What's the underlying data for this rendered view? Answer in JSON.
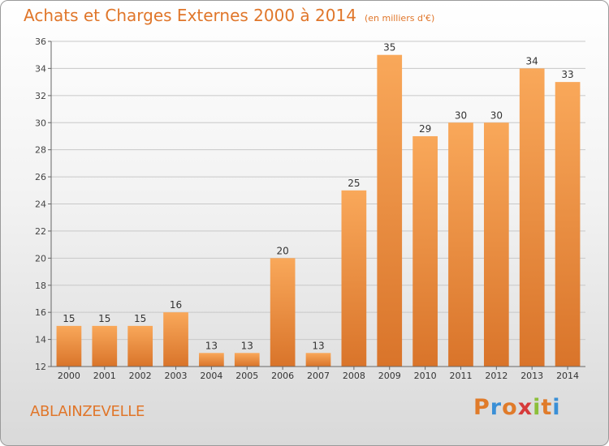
{
  "header": {
    "title": "Achats et Charges Externes 2000 à 2014",
    "unit": "(en milliers d'€)"
  },
  "footer": {
    "commune": "ABLAINZEVELLE",
    "logo": "Proxiti",
    "logo_colors": [
      "#e07b2a",
      "#3a8fd6",
      "#e07b2a",
      "#d63a3a",
      "#8cbf3a",
      "#e07b2a",
      "#3a8fd6"
    ]
  },
  "chart_data": {
    "type": "bar",
    "title": "Achats et Charges Externes 2000 à 2014",
    "subtitle": "(en milliers d'€)",
    "xlabel": "",
    "ylabel": "",
    "categories": [
      "2000",
      "2001",
      "2002",
      "2003",
      "2004",
      "2005",
      "2006",
      "2007",
      "2008",
      "2009",
      "2010",
      "2011",
      "2012",
      "2013",
      "2014"
    ],
    "values": [
      15,
      15,
      15,
      16,
      13,
      13,
      20,
      13,
      25,
      35,
      29,
      30,
      30,
      34,
      33
    ],
    "ylim": [
      12,
      36
    ],
    "yticks": [
      12,
      14,
      16,
      18,
      20,
      22,
      24,
      26,
      28,
      30,
      32,
      34,
      36
    ],
    "grid": true,
    "bar_color_light": "#f9a85a",
    "bar_color_dark": "#d9742a",
    "label_color": "#333333"
  }
}
